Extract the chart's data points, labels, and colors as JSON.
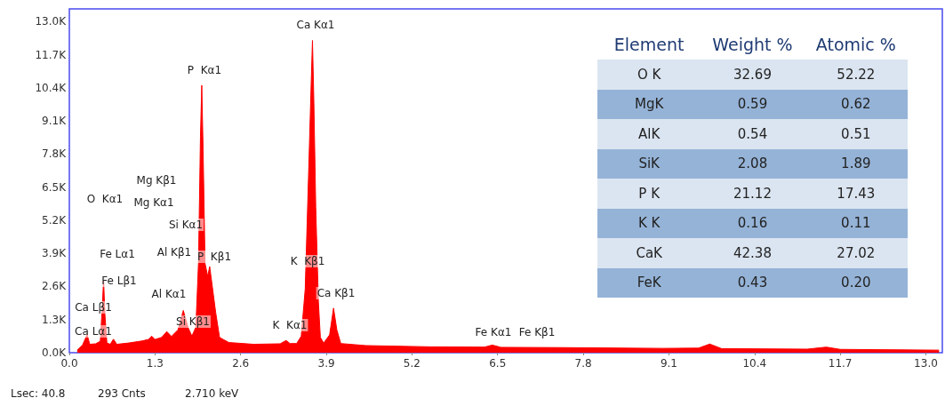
{
  "chart_data": [
    {
      "type": "area",
      "color": "#ff0000",
      "x": [
        0.12,
        0.2,
        0.27,
        0.31,
        0.4,
        0.47,
        0.5,
        0.52,
        0.54,
        0.57,
        0.62,
        0.67,
        0.72,
        0.9,
        1.1,
        1.2,
        1.25,
        1.3,
        1.4,
        1.48,
        1.55,
        1.65,
        1.73,
        1.8,
        1.86,
        1.92,
        1.96,
        1.99,
        2.01,
        2.03,
        2.06,
        2.1,
        2.13,
        2.17,
        2.22,
        2.28,
        2.42,
        2.8,
        3.2,
        3.29,
        3.35,
        3.45,
        3.52,
        3.58,
        3.63,
        3.67,
        3.69,
        3.71,
        3.74,
        3.78,
        3.81,
        3.86,
        3.95,
        4.01,
        4.06,
        4.12,
        4.5,
        5.5,
        6.3,
        6.42,
        6.55,
        7.5,
        9.0,
        9.55,
        9.72,
        9.9,
        11.2,
        11.49,
        11.7,
        13.2
      ],
      "values": [
        100,
        300,
        710,
        330,
        350,
        450,
        1800,
        2860,
        1500,
        380,
        330,
        530,
        330,
        380,
        460,
        520,
        650,
        520,
        600,
        830,
        640,
        900,
        1660,
        1000,
        650,
        1000,
        3500,
        8500,
        10500,
        8000,
        3500,
        3000,
        3380,
        2600,
        1600,
        600,
        400,
        330,
        350,
        480,
        360,
        360,
        650,
        2500,
        6900,
        10500,
        12260,
        10000,
        5700,
        2000,
        600,
        380,
        700,
        1750,
        900,
        360,
        280,
        230,
        220,
        300,
        210,
        200,
        170,
        180,
        340,
        160,
        140,
        220,
        130,
        100
      ],
      "xlim": [
        0,
        13.25
      ],
      "xticks": [
        {
          "value": 0,
          "label": "0.0"
        },
        {
          "value": 1.3,
          "label": "1.3"
        },
        {
          "value": 2.6,
          "label": "2.6"
        },
        {
          "value": 3.9,
          "label": "3.9"
        },
        {
          "value": 5.2,
          "label": "5.2"
        },
        {
          "value": 6.5,
          "label": "6.5"
        },
        {
          "value": 7.8,
          "label": "7.8"
        },
        {
          "value": 9.1,
          "label": "9.1"
        },
        {
          "value": 10.4,
          "label": "10.4"
        },
        {
          "value": 11.7,
          "label": "11.7"
        },
        {
          "value": 13,
          "label": "13.0"
        }
      ],
      "ylim": [
        0,
        13500
      ],
      "yticks": [
        {
          "value": 0,
          "label": "0.0K"
        },
        {
          "value": 1300,
          "label": "1.3K"
        },
        {
          "value": 2600,
          "label": "2.6K"
        },
        {
          "value": 3900,
          "label": "3.9K"
        },
        {
          "value": 5200,
          "label": "5.2K"
        },
        {
          "value": 6500,
          "label": "6.5K"
        },
        {
          "value": 7800,
          "label": "7.8K"
        },
        {
          "value": 9100,
          "label": "9.1K"
        },
        {
          "value": 10400,
          "label": "10.4K"
        },
        {
          "value": 11700,
          "label": "11.7K"
        },
        {
          "value": 13000,
          "label": "13.0K"
        }
      ],
      "grid": false,
      "marker": "none",
      "annotations": [
        "Ca Kα1",
        "P  Kα1",
        "Mg Kβ1",
        "O  Kα1",
        "Mg Kα1",
        "Si Kα1",
        "Fe Lα1",
        "Al Kβ1",
        "P  Kβ1",
        "K  Kβ1",
        "Fe Lβ1",
        "Al Kα1",
        "Ca Kβ1",
        "Ca Lβ1",
        "Si Kβ1",
        "K  Kα1",
        "Ca Lα1",
        "Fe Kα1",
        "Fe Kβ1",
        "Lsec: 40.8",
        "293 Cnts",
        "2.710 keV"
      ]
    },
    {
      "type": "other",
      "annotations": [
        "Element",
        "Weight %",
        "Atomic %",
        "O K",
        "32.69",
        "52.22",
        "MgK",
        "0.59",
        "0.62",
        "AlK",
        "0.54",
        "0.51",
        "SiK",
        "2.08",
        "1.89",
        "P K",
        "21.12",
        "17.43",
        "K K",
        "0.16",
        "0.11",
        "CaK",
        "42.38",
        "27.02",
        "FeK",
        "0.43",
        "0.20"
      ]
    }
  ]
}
